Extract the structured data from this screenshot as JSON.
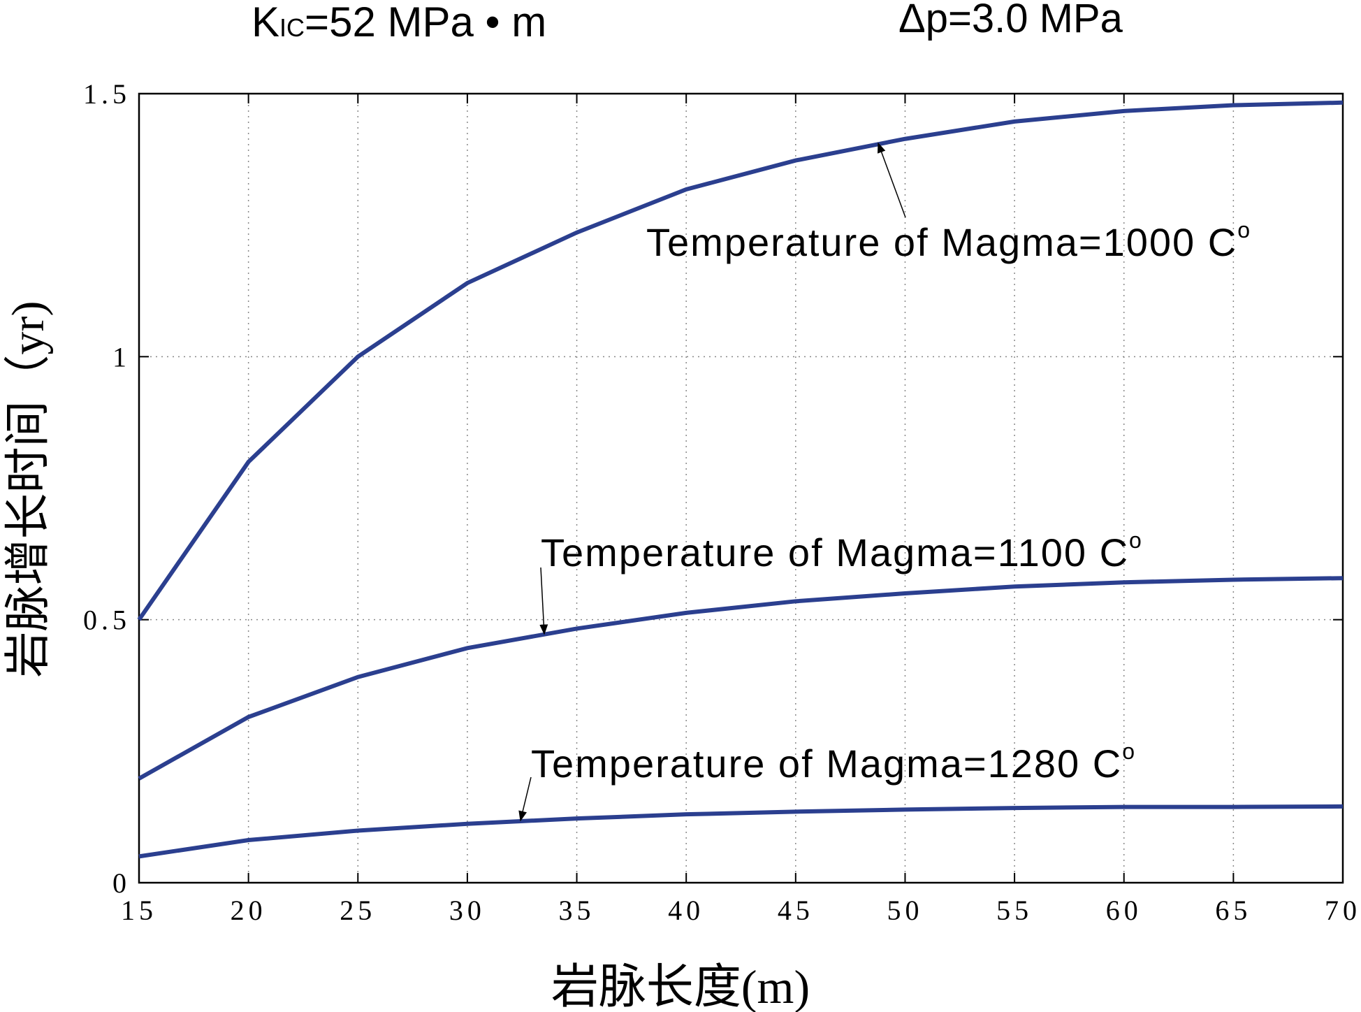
{
  "chart_data": {
    "type": "line",
    "title": {
      "k": "K",
      "sub": "IC",
      "rest": "=52  MPa • m"
    },
    "subtitle": "Δp=3.0 MPa",
    "xlabel": "岩脉长度(m)",
    "ylabel": "岩脉增长时间（yr)",
    "x": [
      15,
      20,
      25,
      30,
      35,
      40,
      45,
      50,
      55,
      60,
      65,
      70
    ],
    "series": [
      {
        "name": "Temperature of Magma=1000 C",
        "sup": "o",
        "color": "#2b3f8f",
        "values": [
          0.5,
          0.8,
          1.0,
          1.14,
          1.236,
          1.318,
          1.373,
          1.414,
          1.447,
          1.467,
          1.478,
          1.483
        ]
      },
      {
        "name": "Temperature of Magma=1100 C",
        "sup": "o",
        "color": "#2b3f8f",
        "values": [
          0.198,
          0.315,
          0.391,
          0.446,
          0.483,
          0.513,
          0.535,
          0.55,
          0.563,
          0.571,
          0.576,
          0.579
        ]
      },
      {
        "name": "Temperature of Magma=1280 C",
        "sup": "o",
        "color": "#2b3f8f",
        "values": [
          0.05,
          0.081,
          0.099,
          0.112,
          0.122,
          0.13,
          0.135,
          0.139,
          0.142,
          0.144,
          0.144,
          0.145
        ]
      }
    ],
    "xlim": [
      15,
      70
    ],
    "xticks": [
      15,
      20,
      25,
      30,
      35,
      40,
      45,
      50,
      55,
      60,
      65,
      70
    ],
    "ylim": [
      0,
      1.5
    ],
    "yticks": [
      0,
      0.5,
      1,
      1.5
    ],
    "grid": true
  }
}
